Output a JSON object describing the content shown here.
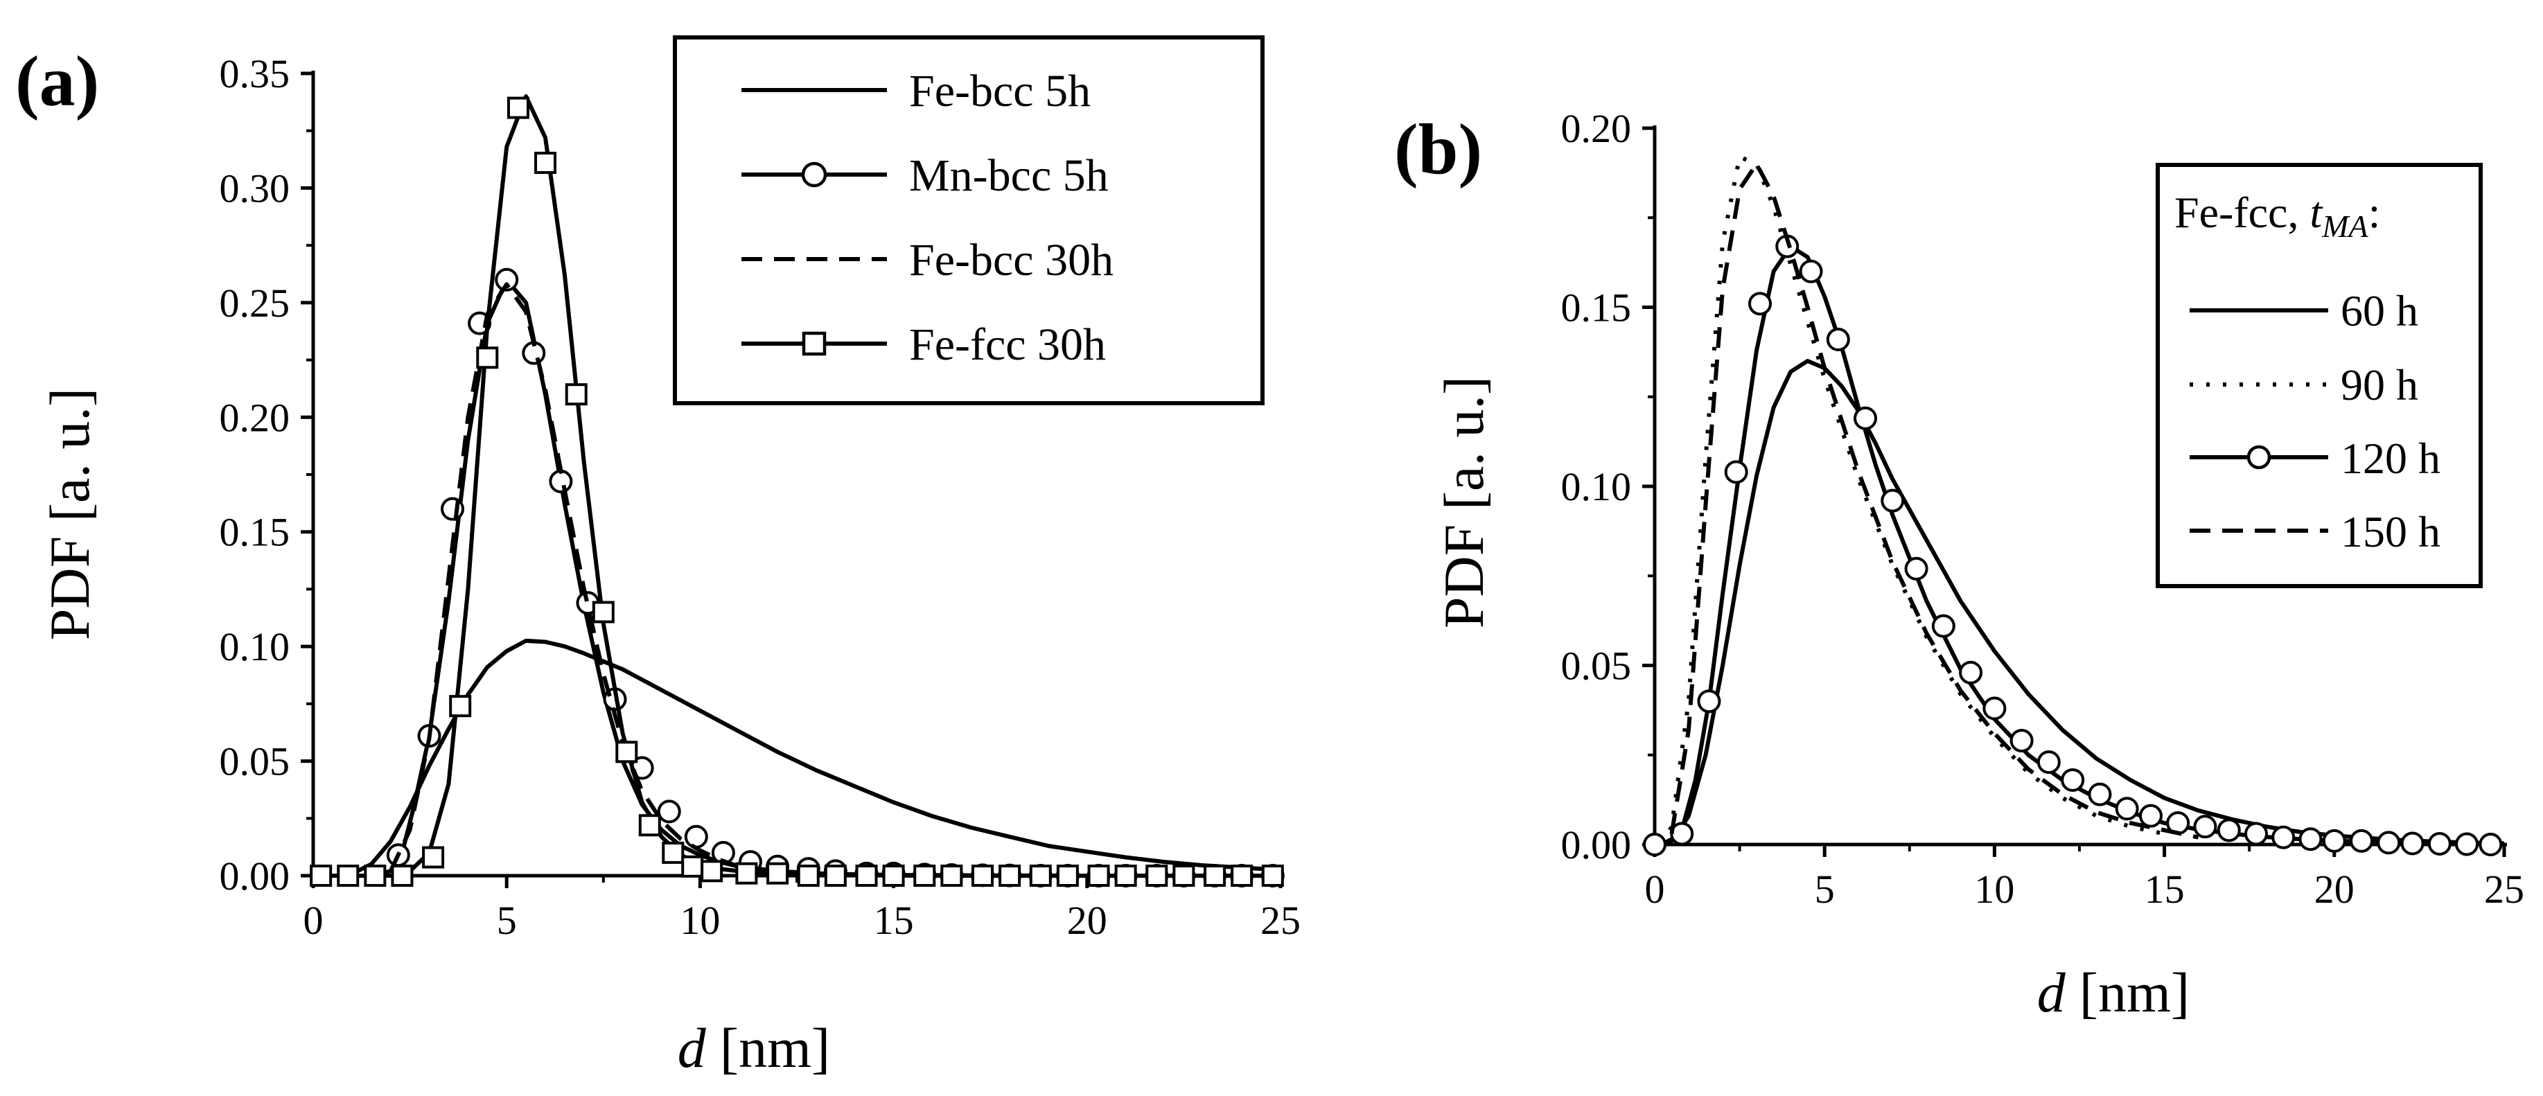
{
  "chart_data": [
    {
      "type": "line",
      "panel_label": "(a)",
      "xlabel_var": "d",
      "xlabel_unit": "[nm]",
      "ylabel": "PDF [a. u.]",
      "xlim": [
        0,
        25
      ],
      "ylim": [
        0,
        0.35
      ],
      "xticks": [
        0,
        5,
        10,
        15,
        20,
        25
      ],
      "xtick_labels": [
        "0",
        "5",
        "10",
        "15",
        "20",
        "25"
      ],
      "yticks": [
        0,
        0.05,
        0.1,
        0.15,
        0.2,
        0.25,
        0.3,
        0.35
      ],
      "ytick_labels": [
        "0.00",
        "0.05",
        "0.10",
        "0.15",
        "0.20",
        "0.25",
        "0.30",
        "0.35"
      ],
      "grid": false,
      "legend_position": "top-right",
      "series": [
        {
          "name": "Fe-bcc 5h",
          "style": "solid",
          "marker": "none",
          "x": [
            0.9,
            1.5,
            2.0,
            2.5,
            3.0,
            3.5,
            4.0,
            4.5,
            5.0,
            5.5,
            6.0,
            6.5,
            7.0,
            8.0,
            9.0,
            10.0,
            11.0,
            12.0,
            13.0,
            14.0,
            15.0,
            16.0,
            17.0,
            18.0,
            19.0,
            20.0,
            21.0,
            22.0,
            23.0,
            24.0,
            25.0
          ],
          "y": [
            0.0,
            0.005,
            0.015,
            0.03,
            0.048,
            0.064,
            0.079,
            0.091,
            0.098,
            0.1025,
            0.102,
            0.1,
            0.097,
            0.09,
            0.081,
            0.072,
            0.063,
            0.054,
            0.046,
            0.039,
            0.032,
            0.026,
            0.021,
            0.017,
            0.013,
            0.0105,
            0.008,
            0.006,
            0.0045,
            0.0035,
            0.0025
          ]
        },
        {
          "name": "Mn-bcc 5h",
          "style": "solid",
          "marker": "circle",
          "x": [
            0.2,
            0.8,
            1.4,
            2.0,
            2.3,
            2.6,
            3.0,
            3.5,
            4.0,
            4.5,
            5.0,
            5.5,
            6.0,
            6.5,
            7.0,
            7.5,
            8.0,
            8.5,
            9.0,
            9.5,
            10.0,
            10.5,
            11.0,
            11.5,
            12.0,
            13.0,
            14.0,
            15.0,
            16.0,
            18.0,
            20.0,
            22.0,
            25.0
          ],
          "y": [
            0,
            0,
            0,
            0.002,
            0.01,
            0.03,
            0.061,
            0.12,
            0.19,
            0.241,
            0.26,
            0.25,
            0.21,
            0.162,
            0.118,
            0.08,
            0.05,
            0.031,
            0.02,
            0.013,
            0.009,
            0.006,
            0.004,
            0.003,
            0.002,
            0.001,
            0.0006,
            0.0003,
            0.0002,
            0.0001,
            0,
            0,
            0
          ],
          "marker_x": [
            2.2,
            3.0,
            3.6,
            4.3,
            5.0,
            5.7,
            6.4,
            7.1,
            7.8,
            8.5,
            9.2,
            9.9,
            10.6,
            11.3,
            12.0,
            12.8,
            13.5,
            14.3,
            15.0,
            15.8,
            16.5,
            17.3,
            18.0,
            18.8,
            19.5,
            20.3,
            21.0,
            21.8,
            22.5,
            23.3,
            24.0,
            24.8
          ],
          "marker_y": [
            0.009,
            0.061,
            0.16,
            0.241,
            0.26,
            0.228,
            0.172,
            0.119,
            0.077,
            0.047,
            0.028,
            0.017,
            0.01,
            0.006,
            0.004,
            0.003,
            0.002,
            0.001,
            0.001,
            0.0005,
            0.0003,
            0.0002,
            0.0001,
            0,
            0,
            0,
            0,
            0,
            0,
            0,
            0,
            0
          ]
        },
        {
          "name": "Fe-bcc 30h",
          "style": "dashed",
          "marker": "none",
          "x": [
            2.0,
            2.5,
            3.0,
            3.5,
            4.0,
            4.5,
            5.0,
            5.5,
            6.0,
            6.5,
            7.0,
            7.5,
            8.0,
            8.5,
            9.0,
            9.5,
            10.0,
            10.5,
            11.0,
            12.0,
            13.0,
            14.0,
            15.0
          ],
          "y": [
            0.002,
            0.02,
            0.06,
            0.13,
            0.2,
            0.245,
            0.258,
            0.246,
            0.212,
            0.168,
            0.125,
            0.088,
            0.058,
            0.037,
            0.024,
            0.016,
            0.011,
            0.007,
            0.004,
            0.002,
            0.001,
            0.0005,
            0.0002
          ]
        },
        {
          "name": "Fe-fcc 30h",
          "style": "solid",
          "marker": "square",
          "x": [
            0.2,
            1.0,
            2.0,
            2.5,
            3.0,
            3.5,
            4.0,
            4.5,
            5.0,
            5.5,
            6.0,
            6.5,
            7.0,
            7.5,
            8.0,
            8.5,
            9.0,
            9.5,
            10.0,
            10.5,
            11.0,
            12.0,
            13.0,
            14.0,
            15.0,
            16.0,
            18.0,
            20.0,
            22.0,
            25.0
          ],
          "y": [
            0,
            0,
            0,
            0.002,
            0.01,
            0.04,
            0.125,
            0.24,
            0.318,
            0.34,
            0.322,
            0.262,
            0.18,
            0.11,
            0.062,
            0.032,
            0.017,
            0.009,
            0.005,
            0.003,
            0.002,
            0.001,
            0.0005,
            0.0002,
            0.0001,
            0,
            0,
            0,
            0,
            0
          ],
          "marker_x": [
            0.2,
            0.9,
            1.6,
            2.3,
            3.1,
            3.8,
            4.5,
            5.3,
            6.0,
            6.8,
            7.5,
            8.1,
            8.7,
            9.3,
            9.8,
            10.3,
            11.2,
            12.0,
            12.8,
            13.5,
            14.3,
            15.0,
            15.8,
            16.5,
            17.3,
            18.0,
            18.8,
            19.5,
            20.3,
            21.0,
            21.8,
            22.5,
            23.3,
            24.0,
            24.8
          ],
          "marker_y": [
            0,
            0,
            0,
            0,
            0.008,
            0.074,
            0.226,
            0.335,
            0.311,
            0.21,
            0.115,
            0.054,
            0.022,
            0.01,
            0.004,
            0.002,
            0.001,
            0.001,
            0,
            0,
            0,
            0,
            0,
            0,
            0,
            0,
            0,
            0,
            0,
            0,
            0,
            0,
            0,
            0,
            0
          ]
        }
      ]
    },
    {
      "type": "line",
      "panel_label": "(b)",
      "xlabel_var": "d",
      "xlabel_unit": "[nm]",
      "ylabel": "PDF [a. u.]",
      "xlim": [
        0,
        25
      ],
      "ylim": [
        0,
        0.2
      ],
      "xticks": [
        0,
        5,
        10,
        15,
        20,
        25
      ],
      "xtick_labels": [
        "0",
        "5",
        "10",
        "15",
        "20",
        "25"
      ],
      "yticks": [
        0,
        0.05,
        0.1,
        0.15,
        0.2
      ],
      "ytick_labels": [
        "0.00",
        "0.05",
        "0.10",
        "0.15",
        "0.20"
      ],
      "grid": false,
      "legend_position": "top-right",
      "legend_title_prefix": "Fe-fcc, ",
      "legend_title_var": "t",
      "legend_title_sub": "MA",
      "legend_title_suffix": ":",
      "series": [
        {
          "name": "60 h",
          "style": "solid",
          "marker": "none",
          "x": [
            0.2,
            0.6,
            1.0,
            1.5,
            2.0,
            2.5,
            3.0,
            3.5,
            4.0,
            4.5,
            5.0,
            5.5,
            6.0,
            6.5,
            7.0,
            8.0,
            9.0,
            10.0,
            11.0,
            12.0,
            13.0,
            14.0,
            15.0,
            16.0,
            17.0,
            18.0,
            19.0,
            20.0,
            21.0,
            22.0,
            23.0,
            24.0,
            25.0
          ],
          "y": [
            0,
            0.002,
            0.008,
            0.025,
            0.05,
            0.078,
            0.103,
            0.122,
            0.132,
            0.135,
            0.133,
            0.128,
            0.121,
            0.112,
            0.102,
            0.085,
            0.068,
            0.054,
            0.042,
            0.032,
            0.024,
            0.018,
            0.013,
            0.0095,
            0.007,
            0.005,
            0.0035,
            0.0025,
            0.0018,
            0.0012,
            0.0008,
            0.0005,
            0.0003
          ]
        },
        {
          "name": "90 h",
          "style": "dotted",
          "marker": "none",
          "x": [
            0.2,
            0.5,
            1.0,
            1.5,
            2.0,
            2.5,
            3.0,
            3.5,
            4.0,
            4.5,
            5.0,
            6.0,
            7.0,
            8.0,
            9.0,
            10.0,
            11.0,
            12.0,
            13.0,
            14.0,
            15.0
          ],
          "y": [
            0,
            0.005,
            0.04,
            0.108,
            0.168,
            0.192,
            0.19,
            0.178,
            0.162,
            0.146,
            0.13,
            0.102,
            0.078,
            0.058,
            0.042,
            0.03,
            0.02,
            0.013,
            0.008,
            0.005,
            0.003
          ]
        },
        {
          "name": "120 h",
          "style": "solid",
          "marker": "circle",
          "x": [
            0.2,
            0.5,
            0.8,
            1.2,
            1.6,
            2.0,
            2.5,
            3.0,
            3.5,
            4.0,
            4.5,
            5.0,
            5.5,
            6.0,
            6.5,
            7.0,
            8.0,
            9.0,
            10.0,
            11.0,
            12.0,
            13.0,
            14.0,
            15.0,
            16.0,
            17.0,
            18.0,
            19.0,
            20.0,
            22.0,
            24.0,
            25.0
          ],
          "y": [
            0,
            0.001,
            0.004,
            0.018,
            0.04,
            0.07,
            0.105,
            0.138,
            0.16,
            0.167,
            0.164,
            0.153,
            0.139,
            0.122,
            0.106,
            0.092,
            0.068,
            0.049,
            0.035,
            0.025,
            0.018,
            0.013,
            0.009,
            0.006,
            0.0042,
            0.003,
            0.0021,
            0.0015,
            0.001,
            0.0005,
            0.0002,
            0.0001
          ],
          "marker_x": [
            0.0,
            0.8,
            1.6,
            2.4,
            3.1,
            3.9,
            4.6,
            5.4,
            6.2,
            7.0,
            7.7,
            8.5,
            9.3,
            10.0,
            10.8,
            11.6,
            12.3,
            13.1,
            13.9,
            14.6,
            15.4,
            16.2,
            16.9,
            17.7,
            18.5,
            19.3,
            20.0,
            20.8,
            21.6,
            22.3,
            23.1,
            23.9,
            24.6
          ],
          "marker_y": [
            0,
            0.003,
            0.04,
            0.104,
            0.151,
            0.167,
            0.16,
            0.141,
            0.119,
            0.096,
            0.077,
            0.061,
            0.048,
            0.038,
            0.029,
            0.023,
            0.018,
            0.014,
            0.01,
            0.008,
            0.006,
            0.005,
            0.004,
            0.003,
            0.002,
            0.0015,
            0.001,
            0.001,
            0.0005,
            0.0003,
            0.0002,
            0.0001,
            0
          ]
        },
        {
          "name": "150 h",
          "style": "dashed",
          "marker": "none",
          "x": [
            0.5,
            1.0,
            1.5,
            2.0,
            2.5,
            3.0,
            3.5,
            4.0,
            4.5,
            5.0,
            6.0,
            7.0,
            8.0,
            9.0,
            10.0,
            11.0,
            12.0,
            13.0,
            14.0,
            15.0,
            16.0
          ],
          "y": [
            0.003,
            0.032,
            0.095,
            0.155,
            0.183,
            0.19,
            0.181,
            0.166,
            0.15,
            0.133,
            0.104,
            0.079,
            0.059,
            0.043,
            0.031,
            0.021,
            0.014,
            0.009,
            0.006,
            0.004,
            0.002
          ]
        }
      ]
    }
  ]
}
